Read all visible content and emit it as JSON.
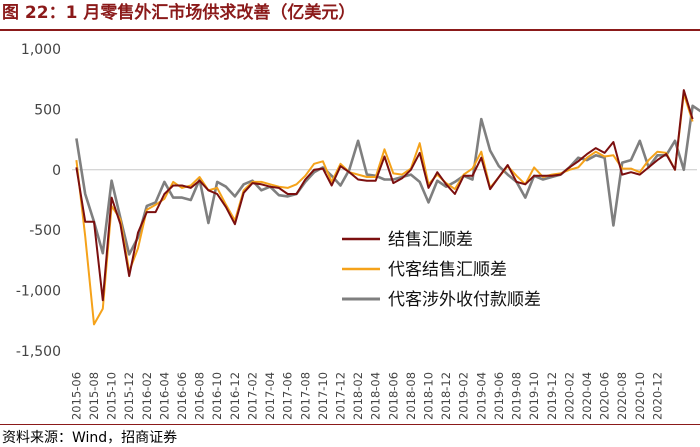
{
  "header": {
    "title": "图 22：1 月零售外汇市场供求改善（亿美元）"
  },
  "footer": {
    "source": "资料来源：Wind，招商证券"
  },
  "colors": {
    "s1": "#7b0f0f",
    "s2": "#f5a21a",
    "s3": "#7f7f7f",
    "brand": "#8b1a1a"
  },
  "chart_data": {
    "type": "line",
    "title": "1 月零售外汇市场供求改善（亿美元）",
    "ylim": [
      -1500,
      1000
    ],
    "yticks": [
      -1500,
      -1000,
      -500,
      0,
      500,
      1000
    ],
    "ytick_labels": [
      "-1,500",
      "-1,000",
      "-500",
      "0",
      "500",
      "1,000"
    ],
    "x_tick_labels": [
      "2015-06",
      "2015-08",
      "2015-10",
      "2015-12",
      "2016-02",
      "2016-04",
      "2016-06",
      "2016-08",
      "2016-10",
      "2016-12",
      "2017-02",
      "2017-04",
      "2017-06",
      "2017-08",
      "2017-10",
      "2017-12",
      "2018-02",
      "2018-04",
      "2018-06",
      "2018-08",
      "2018-10",
      "2018-12",
      "2019-02",
      "2019-04",
      "2019-06",
      "2019-08",
      "2019-10",
      "2019-12",
      "2020-02",
      "2020-04",
      "2020-06",
      "2020-08",
      "2020-10",
      "2020-12"
    ],
    "legend_position": "center-right",
    "series": [
      {
        "name": "结售汇顺差",
        "color": "#7b0f0f",
        "values": [
          20,
          -430,
          -430,
          -1080,
          -230,
          -450,
          -880,
          -520,
          -350,
          -350,
          -200,
          -130,
          -130,
          -150,
          -90,
          -170,
          -200,
          -310,
          -450,
          -190,
          -110,
          -120,
          -140,
          -150,
          -200,
          -200,
          -80,
          0,
          10,
          -130,
          30,
          -20,
          -80,
          -90,
          -90,
          110,
          -110,
          -70,
          0,
          140,
          -150,
          -20,
          -120,
          -200,
          -50,
          -50,
          100,
          -160,
          -60,
          40,
          -100,
          -120,
          -50,
          -50,
          -50,
          -40,
          20,
          70,
          130,
          180,
          140,
          230,
          -40,
          -20,
          -40,
          20,
          80,
          130,
          0,
          660,
          420
        ]
      },
      {
        "name": "代客结售汇顺差",
        "color": "#f5a21a",
        "values": [
          80,
          -550,
          -1280,
          -1150,
          -300,
          -410,
          -840,
          -650,
          -330,
          -290,
          -240,
          -100,
          -150,
          -130,
          -60,
          -170,
          -150,
          -290,
          -420,
          -170,
          -100,
          -100,
          -120,
          -140,
          -150,
          -120,
          -50,
          50,
          70,
          -100,
          50,
          -20,
          -40,
          -60,
          -60,
          170,
          -30,
          -40,
          10,
          220,
          -120,
          -40,
          -110,
          -160,
          -40,
          10,
          150,
          -150,
          -60,
          30,
          -50,
          -120,
          20,
          -60,
          -40,
          -30,
          0,
          20,
          100,
          150,
          110,
          120,
          10,
          10,
          -20,
          80,
          150,
          140,
          0,
          630,
          400
        ]
      },
      {
        "name": "代客涉外收付款顺差",
        "color": "#7f7f7f",
        "values": [
          260,
          -200,
          -430,
          -690,
          -90,
          -400,
          -700,
          -560,
          -300,
          -270,
          -100,
          -230,
          -230,
          -250,
          -80,
          -440,
          -100,
          -140,
          -220,
          -120,
          -90,
          -170,
          -140,
          -210,
          -220,
          -200,
          -100,
          -20,
          20,
          -50,
          -130,
          0,
          240,
          -40,
          -50,
          -80,
          -80,
          -60,
          -40,
          -100,
          -270,
          -90,
          -140,
          -100,
          -50,
          -80,
          420,
          160,
          30,
          -40,
          -100,
          -230,
          -50,
          -80,
          -60,
          -40,
          20,
          100,
          80,
          120,
          100,
          -460,
          60,
          80,
          240,
          20,
          120,
          120,
          240,
          0,
          530,
          480
        ]
      }
    ]
  }
}
